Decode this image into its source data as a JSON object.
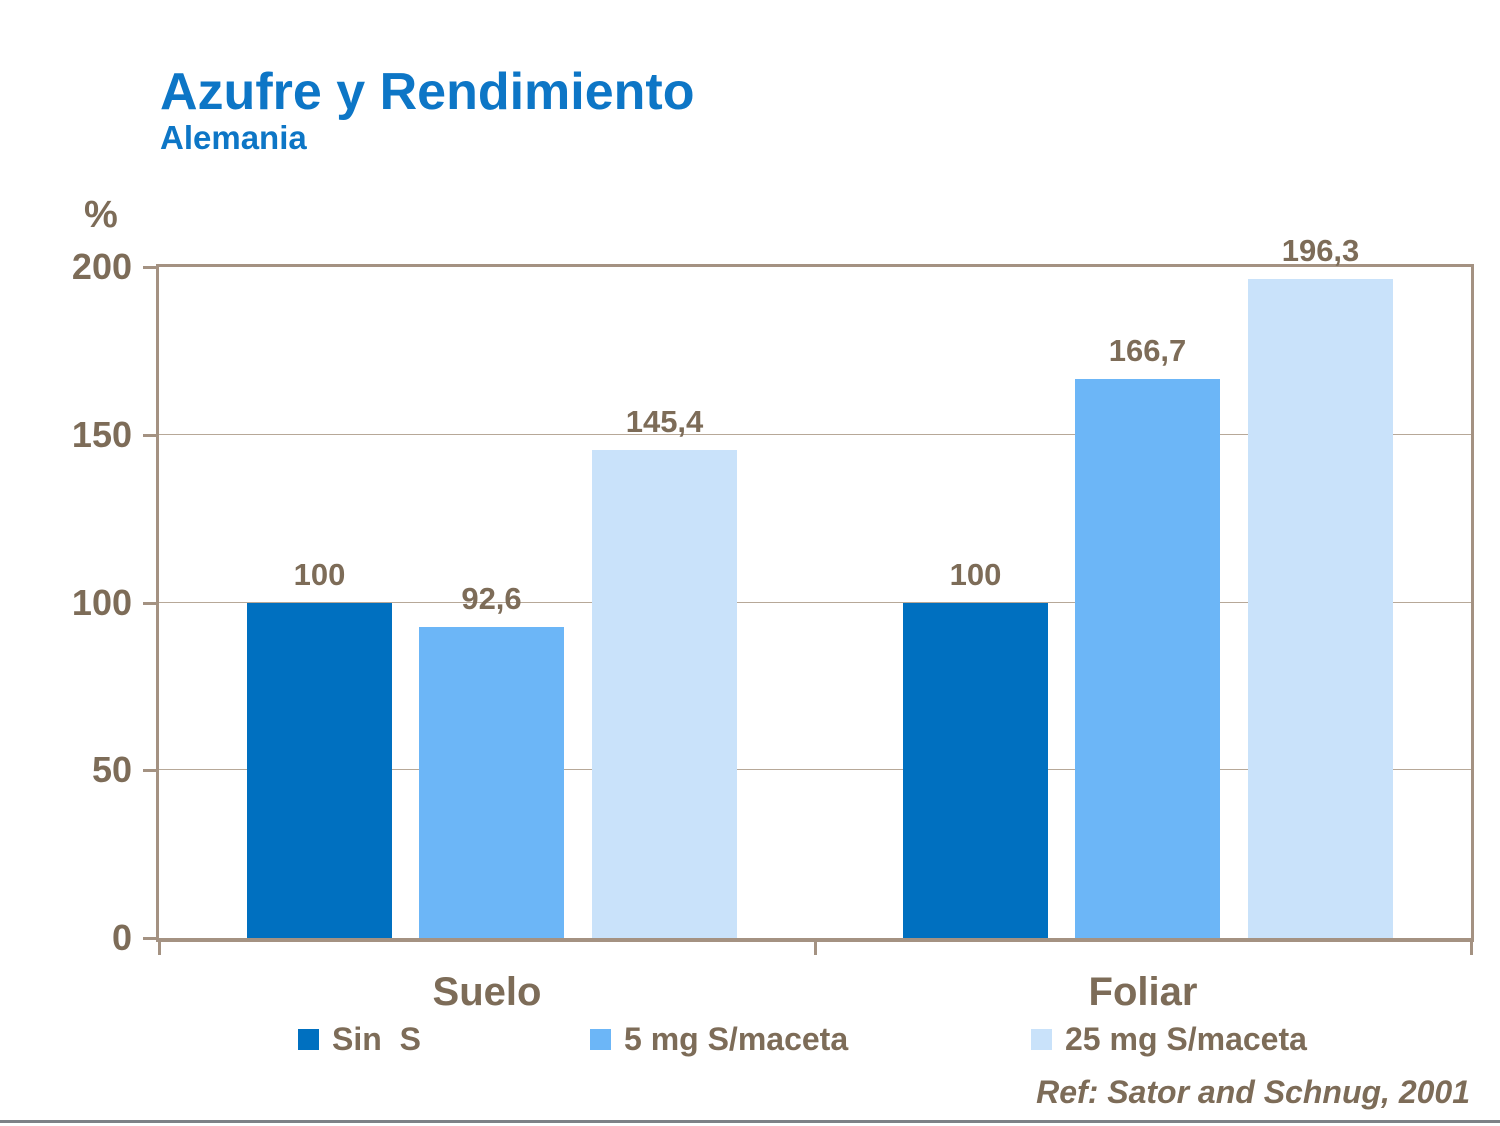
{
  "slide": {
    "reference": "Ref: Sator and Schnug, 2001"
  },
  "chart_data": {
    "type": "bar",
    "title": "Azufre y Rendimiento",
    "subtitle": "Alemania",
    "ylabel": "%",
    "xlabel": "",
    "ylim": [
      0,
      200
    ],
    "yticks": [
      0,
      50,
      100,
      150,
      200
    ],
    "grid": true,
    "legend_position": "bottom",
    "categories": [
      "Suelo",
      "Foliar"
    ],
    "series": [
      {
        "name": "Sin  S",
        "color": "#0070c0",
        "values": [
          100,
          100
        ],
        "labels": [
          "100",
          "100"
        ]
      },
      {
        "name": "5 mg S/maceta",
        "color": "#6cb6f7",
        "values": [
          92.6,
          166.7
        ],
        "labels": [
          "92,6",
          "166,7"
        ]
      },
      {
        "name": "25 mg S/maceta",
        "color": "#c9e2fa",
        "values": [
          145.4,
          196.3
        ],
        "labels": [
          "145,4",
          "196,3"
        ]
      }
    ]
  },
  "colors": {
    "title": "#0d76c6",
    "axis_text": "#7d6c58",
    "frame": "#a49282",
    "gridline": "#b7a898",
    "bottom_rule": "#7e8187"
  }
}
